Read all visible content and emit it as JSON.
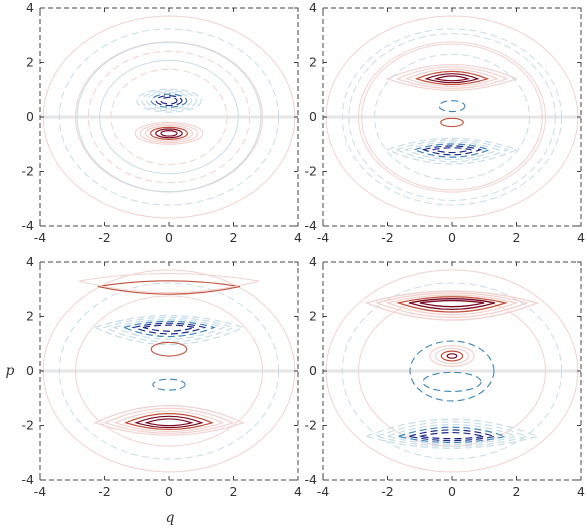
{
  "chart_data": [
    {
      "type": "contour",
      "panel": "top-left",
      "xlim": [
        -4,
        4
      ],
      "ylim": [
        -4,
        4
      ],
      "xticks": [
        -4,
        -2,
        0,
        2,
        4
      ],
      "yticks": [
        -4,
        -2,
        0,
        2,
        4
      ],
      "xlabel": "",
      "ylabel": "",
      "sign_pattern": "negative lobe above p=0, positive lobe below p=0, faint outer rings",
      "positive_peak": {
        "q": 0,
        "p": -0.6
      },
      "negative_peak": {
        "q": 0,
        "p": 0.6
      }
    },
    {
      "type": "contour",
      "panel": "top-right",
      "xlim": [
        -4,
        4
      ],
      "ylim": [
        -4,
        4
      ],
      "xticks": [
        -4,
        -2,
        0,
        2,
        4
      ],
      "yticks": [
        -4,
        -2,
        0,
        2,
        4
      ],
      "xlabel": "",
      "ylabel": "",
      "positive_peak": {
        "q": 0,
        "p": 1.4
      },
      "negative_peak": {
        "q": 0,
        "p": -1.2
      }
    },
    {
      "type": "contour",
      "panel": "bottom-left",
      "xlim": [
        -4,
        4
      ],
      "ylim": [
        -4,
        4
      ],
      "xticks": [
        -4,
        -2,
        0,
        2,
        4
      ],
      "yticks": [
        -4,
        -2,
        0,
        2,
        4
      ],
      "xlabel": "q",
      "ylabel": "p",
      "positive_peak": {
        "q": 0,
        "p": -1.9
      },
      "negative_peak": {
        "q": 0,
        "p": 1.6
      }
    },
    {
      "type": "contour",
      "panel": "bottom-right",
      "xlim": [
        -4,
        4
      ],
      "ylim": [
        -4,
        4
      ],
      "xticks": [
        -4,
        -2,
        0,
        2,
        4
      ],
      "yticks": [
        -4,
        -2,
        0,
        2,
        4
      ],
      "xlabel": "",
      "ylabel": "",
      "positive_peak": {
        "q": 0,
        "p": 2.5
      },
      "negative_peak": {
        "q": 0,
        "p": -2.4
      }
    }
  ],
  "colors": {
    "positive_strong": "#7a0a24",
    "positive_mid": "#c2503a",
    "positive_weak": "#f1d2cf",
    "negative_strong": "#1c2a8c",
    "negative_mid": "#3f86b6",
    "negative_weak": "#c7dde8",
    "zero_band": "#e6e6e6"
  },
  "styles": {
    "positive": "solid",
    "negative": "dashed"
  }
}
